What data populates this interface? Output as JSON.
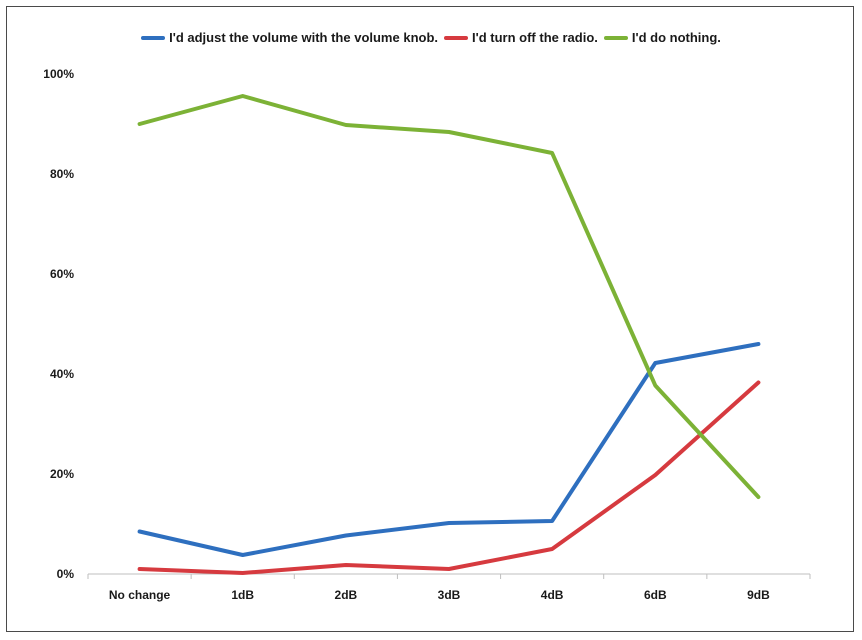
{
  "chart_data": {
    "type": "line",
    "title": "",
    "xlabel": "",
    "ylabel": "",
    "categories": [
      "No change",
      "1dB",
      "2dB",
      "3dB",
      "4dB",
      "6dB",
      "9dB"
    ],
    "ylim": [
      0,
      100
    ],
    "yticks": [
      "0%",
      "20%",
      "40%",
      "60%",
      "80%",
      "100%"
    ],
    "ytick_values": [
      0,
      20,
      40,
      60,
      80,
      100
    ],
    "grid": false,
    "legend_position": "top",
    "series": [
      {
        "name": "I'd adjust the volume with the volume knob.",
        "color": "#2e6fbf",
        "values": [
          8.5,
          3.8,
          7.7,
          10.2,
          10.6,
          42.2,
          46
        ]
      },
      {
        "name": "I'd turn off the radio.",
        "color": "#d63a3f",
        "values": [
          1,
          0.2,
          1.8,
          1,
          5,
          19.8,
          38.3
        ]
      },
      {
        "name": "I'd do nothing.",
        "color": "#7cb236",
        "values": [
          90,
          95.6,
          89.8,
          88.4,
          84.2,
          37.7,
          15.4
        ]
      }
    ]
  }
}
